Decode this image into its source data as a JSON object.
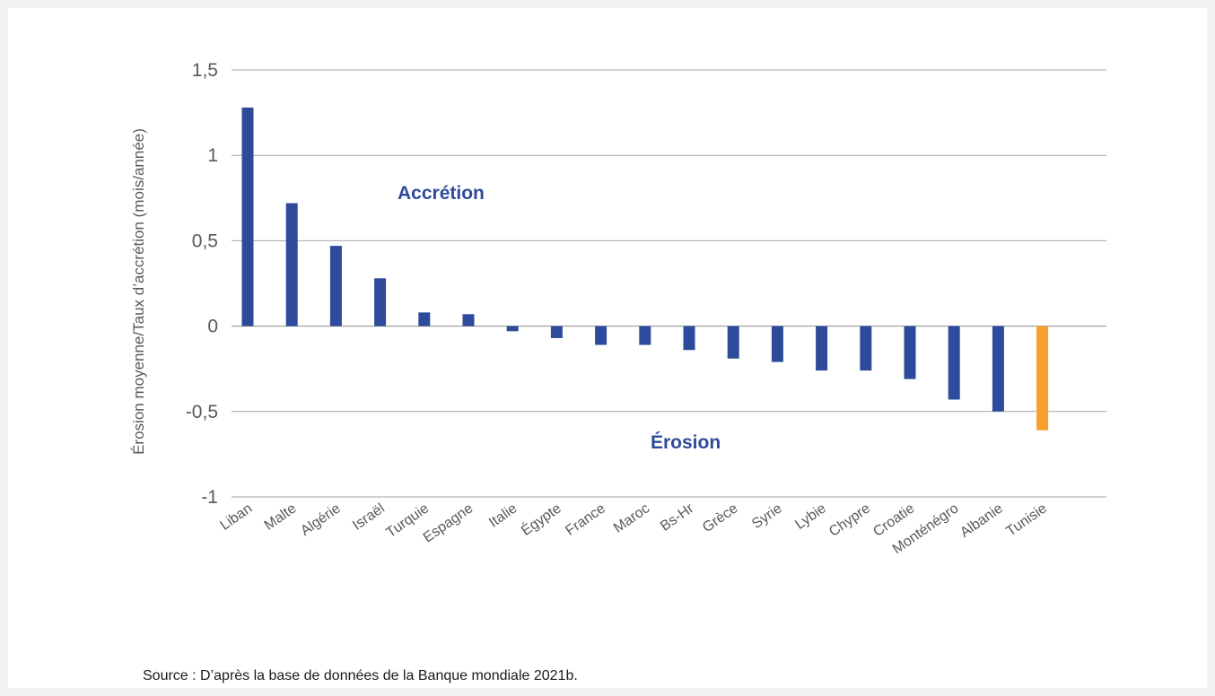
{
  "chart_data": {
    "type": "bar",
    "ylabel": "Érosion moyenne/Taux d’accrétion (mois/année)",
    "xlabel": "",
    "ylim": [
      -1,
      1.5
    ],
    "yticks": [
      {
        "value": 1.5,
        "label": "1,5"
      },
      {
        "value": 1,
        "label": "1"
      },
      {
        "value": 0.5,
        "label": "0,5"
      },
      {
        "value": 0,
        "label": "0"
      },
      {
        "value": -0.5,
        "label": "-0,5"
      },
      {
        "value": -1,
        "label": "-1"
      }
    ],
    "grid": true,
    "categories": [
      "Liban",
      "Malte",
      "Algérie",
      "Israël",
      "Turquie",
      "Espagne",
      "Italie",
      "Égypte",
      "France",
      "Maroc",
      "Bs-Hr",
      "Grèce",
      "Syrie",
      "Lybie",
      "Chypre",
      "Croatie",
      "Monténégro",
      "Albanie",
      "Tunisie"
    ],
    "values": [
      1.28,
      0.72,
      0.47,
      0.28,
      0.08,
      0.07,
      -0.03,
      -0.07,
      -0.11,
      -0.11,
      -0.14,
      -0.19,
      -0.21,
      -0.26,
      -0.26,
      -0.31,
      -0.43,
      -0.5,
      -0.61
    ],
    "colors": {
      "default": "#2e4b9b",
      "highlight": "#f7a02e",
      "highlight_category": "Tunisie"
    },
    "annotations": [
      {
        "text": "Accrétion",
        "color": "#2e4b9b"
      },
      {
        "text": "Érosion",
        "color": "#2e4b9b"
      }
    ]
  },
  "source": "Source : D’après la base de données de la Banque mondiale 2021b."
}
